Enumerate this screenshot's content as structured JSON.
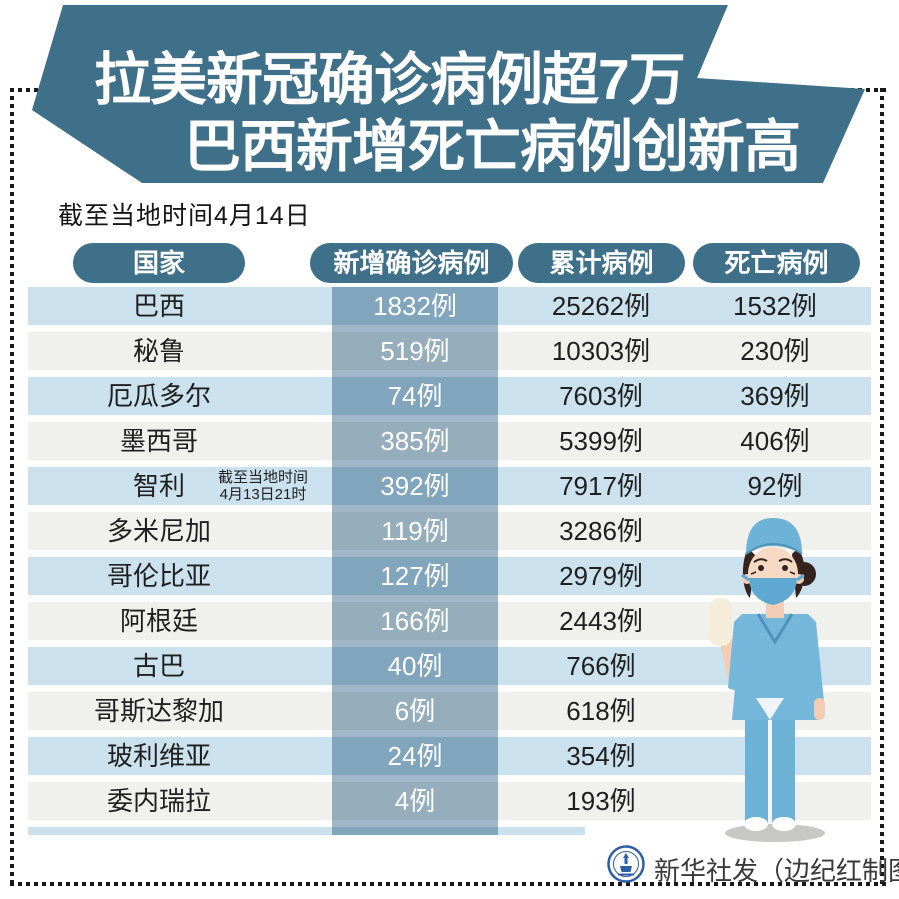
{
  "title": {
    "line1": "拉美新冠确诊病例超7万",
    "line2": "巴西新增死亡病例创新高"
  },
  "subtitle": "截至当地时间4月14日",
  "table": {
    "headers": [
      "国家",
      "新增确诊病例",
      "累计病例",
      "死亡病例"
    ],
    "rows": [
      {
        "country": "巴西",
        "new_cases": "1832例",
        "total_cases": "25262例",
        "deaths": "1532例"
      },
      {
        "country": "秘鲁",
        "new_cases": "519例",
        "total_cases": "10303例",
        "deaths": "230例"
      },
      {
        "country": "厄瓜多尔",
        "new_cases": "74例",
        "total_cases": "7603例",
        "deaths": "369例"
      },
      {
        "country": "墨西哥",
        "new_cases": "385例",
        "total_cases": "5399例",
        "deaths": "406例"
      },
      {
        "country": "智利",
        "note": [
          "截至当地时间",
          "4月13日21时"
        ],
        "new_cases": "392例",
        "total_cases": "7917例",
        "deaths": "92例"
      },
      {
        "country": "多米尼加",
        "new_cases": "119例",
        "total_cases": "3286例",
        "deaths": ""
      },
      {
        "country": "哥伦比亚",
        "new_cases": "127例",
        "total_cases": "2979例",
        "deaths": ""
      },
      {
        "country": "阿根廷",
        "new_cases": "166例",
        "total_cases": "2443例",
        "deaths": ""
      },
      {
        "country": "古巴",
        "new_cases": "40例",
        "total_cases": "766例",
        "deaths": ""
      },
      {
        "country": "哥斯达黎加",
        "new_cases": "6例",
        "total_cases": "618例",
        "deaths": ""
      },
      {
        "country": "玻利维亚",
        "new_cases": "24例",
        "total_cases": "354例",
        "deaths": ""
      },
      {
        "country": "委内瑞拉",
        "new_cases": "4例",
        "total_cases": "193例",
        "deaths": ""
      }
    ]
  },
  "footer": {
    "credit": "新华社发（边纪红制图）"
  },
  "icons": {
    "xinhua_logo": "xinhua-emblem",
    "nurse": "nurse-illustration"
  },
  "colors": {
    "accent": "#3E7089",
    "rowBlue": "#CBE1ED",
    "rowGray": "#F0F0ED",
    "bandOverlay": "rgba(15,75,115,0.40)",
    "titleText": "#FFFFFF",
    "bodyText": "#1F1F1F"
  },
  "chart_data": {
    "type": "table",
    "title": "拉美新冠确诊病例超7万 巴西新增死亡病例创新高",
    "subtitle": "截至当地时间4月14日",
    "columns": [
      "国家",
      "新增确诊病例",
      "累计病例",
      "死亡病例"
    ],
    "rows": [
      {
        "country": "巴西",
        "new": 1832,
        "total": 25262,
        "deaths": 1532
      },
      {
        "country": "秘鲁",
        "new": 519,
        "total": 10303,
        "deaths": 230
      },
      {
        "country": "厄瓜多尔",
        "new": 74,
        "total": 7603,
        "deaths": 369
      },
      {
        "country": "墨西哥",
        "new": 385,
        "total": 5399,
        "deaths": 406
      },
      {
        "country": "智利",
        "note": "截至当地时间4月13日21时",
        "new": 392,
        "total": 7917,
        "deaths": 92
      },
      {
        "country": "多米尼加",
        "new": 119,
        "total": 3286,
        "deaths": null
      },
      {
        "country": "哥伦比亚",
        "new": 127,
        "total": 2979,
        "deaths": null
      },
      {
        "country": "阿根廷",
        "new": 166,
        "total": 2443,
        "deaths": null
      },
      {
        "country": "古巴",
        "new": 40,
        "total": 766,
        "deaths": null
      },
      {
        "country": "哥斯达黎加",
        "new": 6,
        "total": 618,
        "deaths": null
      },
      {
        "country": "玻利维亚",
        "new": 24,
        "total": 354,
        "deaths": null
      },
      {
        "country": "委内瑞拉",
        "new": 4,
        "total": 193,
        "deaths": null
      }
    ],
    "source": "新华社发（边纪红制图）"
  }
}
